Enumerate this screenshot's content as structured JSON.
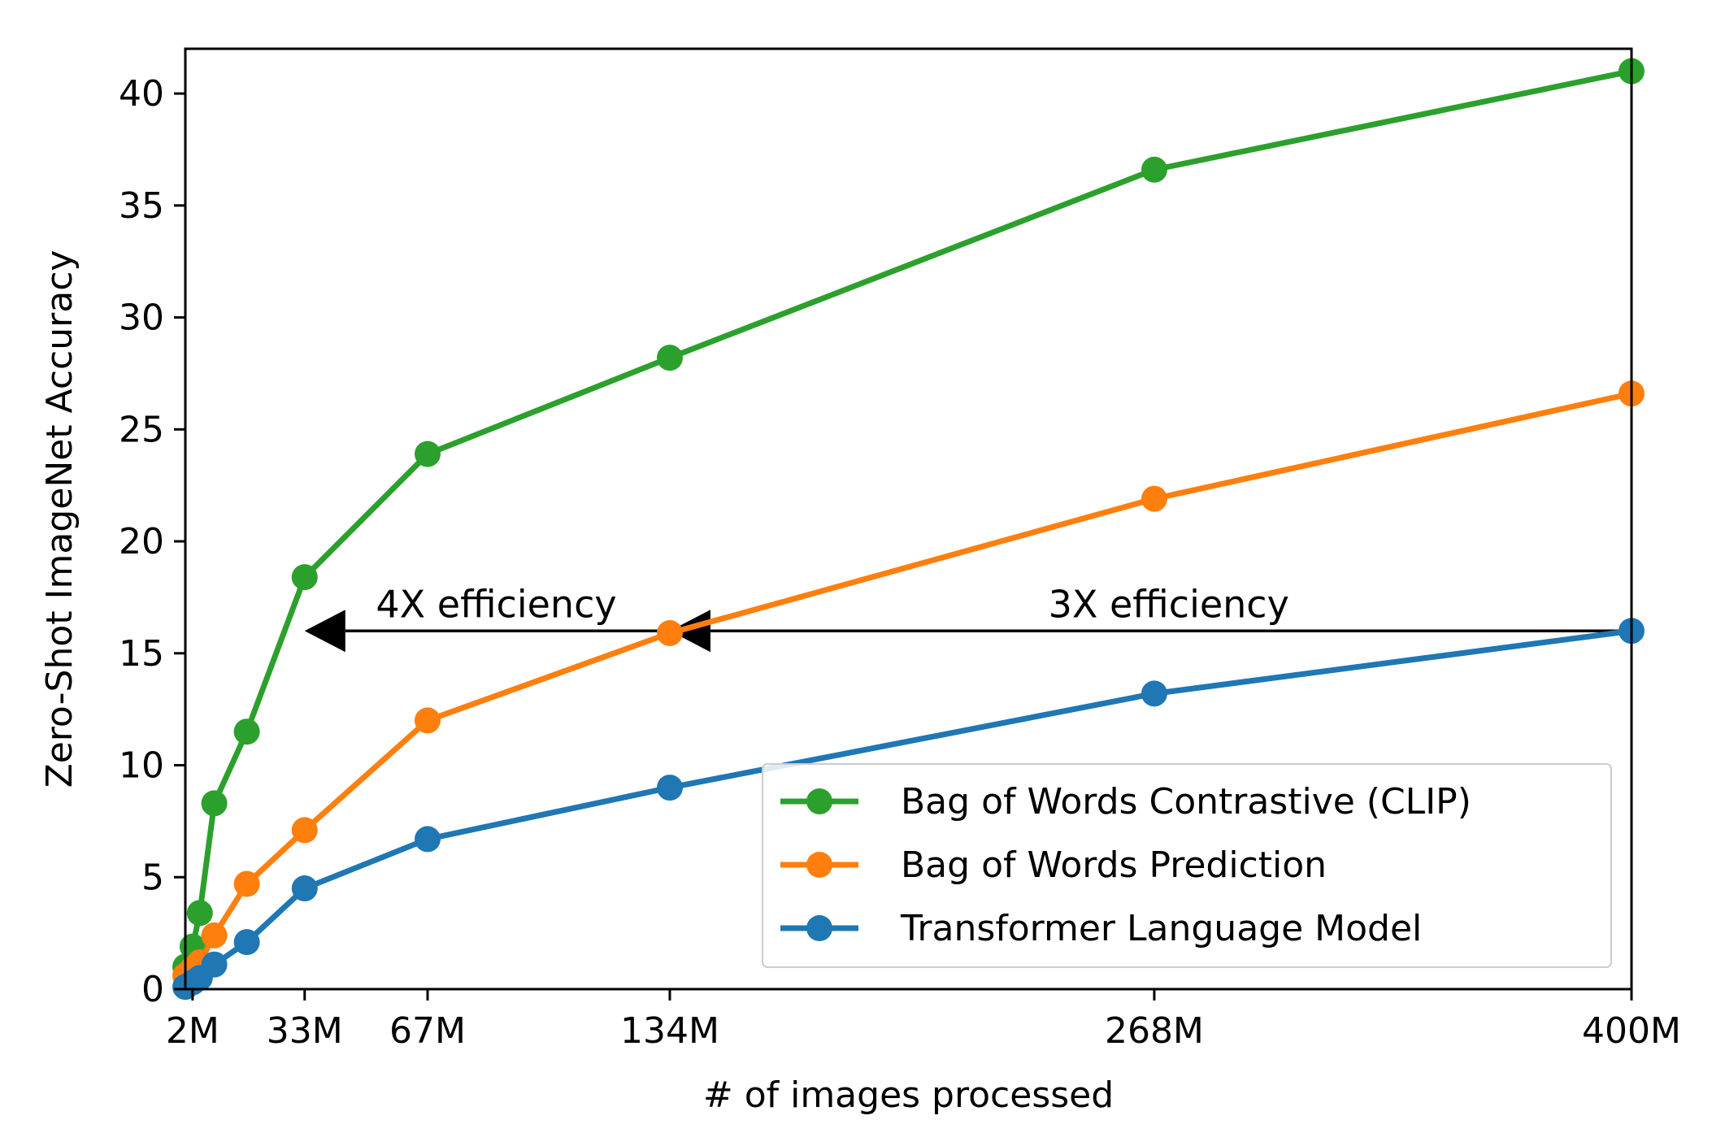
{
  "chart_data": {
    "type": "line",
    "xlabel": "# of images processed",
    "ylabel": "Zero-Shot ImageNet Accuracy",
    "xlim": [
      0,
      400
    ],
    "ylim": [
      0,
      42
    ],
    "x_tick_values": [
      2,
      33,
      67,
      134,
      268,
      400
    ],
    "x_tick_labels": [
      "2M",
      "33M",
      "67M",
      "134M",
      "268M",
      "400M"
    ],
    "y_ticks": [
      0,
      5,
      10,
      15,
      20,
      25,
      30,
      35,
      40
    ],
    "x_unit": "M images",
    "series": [
      {
        "name": "Bag of Words Contrastive (CLIP)",
        "color": "#2ca02c",
        "x": [
          0,
          2,
          4,
          8,
          17,
          33,
          67,
          134,
          268,
          400
        ],
        "y": [
          1.0,
          1.9,
          3.4,
          8.3,
          11.5,
          18.4,
          23.9,
          28.2,
          36.6,
          41.0
        ]
      },
      {
        "name": "Bag of Words Prediction",
        "color": "#ff7f0e",
        "x": [
          0,
          2,
          4,
          8,
          17,
          33,
          67,
          134,
          268,
          400
        ],
        "y": [
          0.6,
          0.9,
          1.2,
          2.4,
          4.7,
          7.1,
          12.0,
          15.9,
          21.9,
          26.6
        ]
      },
      {
        "name": "Transformer Language Model",
        "color": "#1f77b4",
        "x": [
          0,
          2,
          4,
          8,
          17,
          33,
          67,
          134,
          268,
          400
        ],
        "y": [
          0.1,
          0.3,
          0.5,
          1.1,
          2.1,
          4.5,
          6.7,
          9.0,
          13.2,
          16.0
        ]
      }
    ],
    "annotations": [
      {
        "text": "4X efficiency",
        "text_x": 86,
        "text_y": 16.6,
        "arrow_from_x": 134,
        "arrow_to_x": 33,
        "arrow_y": 16.0
      },
      {
        "text": "3X efficiency",
        "text_x": 272,
        "text_y": 16.6,
        "arrow_from_x": 400,
        "arrow_to_x": 134,
        "arrow_y": 16.0
      }
    ],
    "legend_position": "lower-right",
    "grid": false
  }
}
